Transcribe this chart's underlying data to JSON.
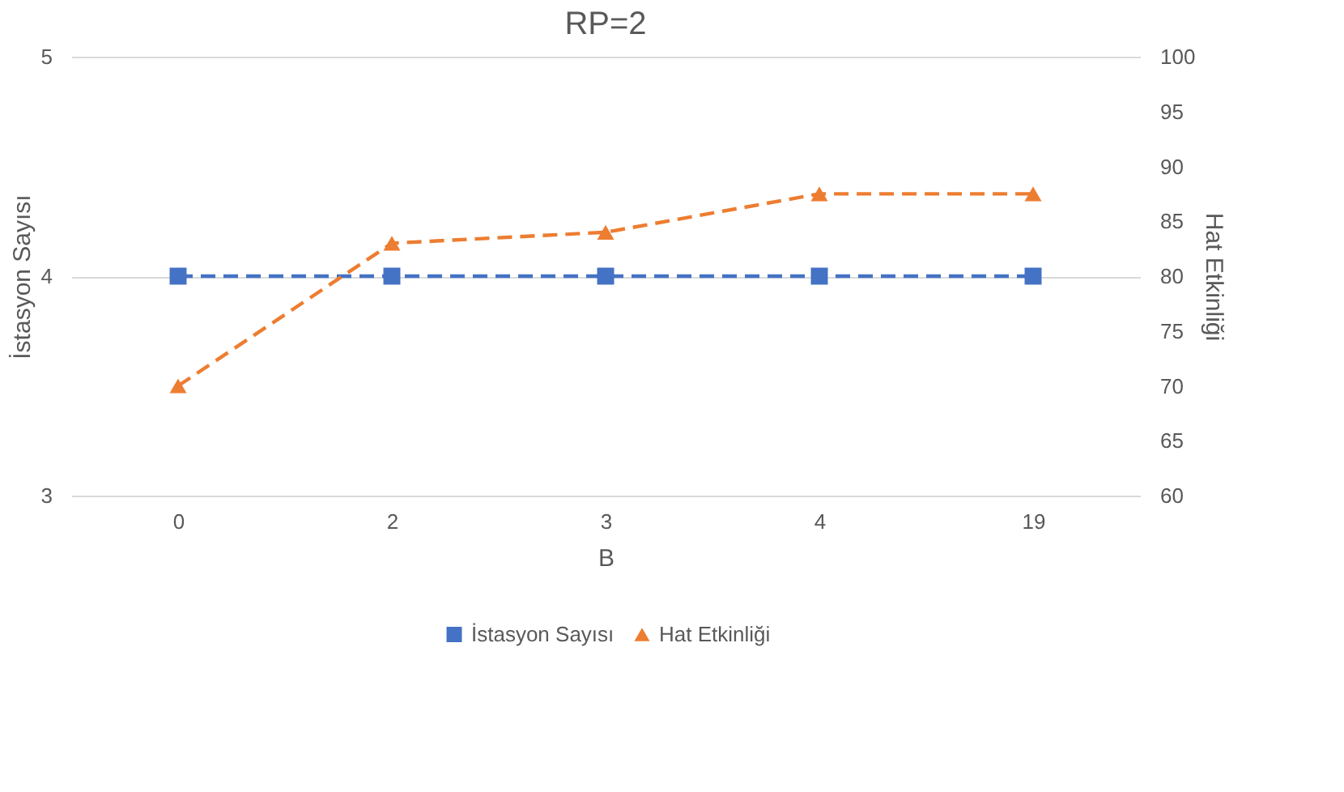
{
  "chart_data": {
    "type": "line",
    "title": "RP=2",
    "xlabel": "B",
    "ylabel": "İstasyon Sayısı",
    "y2label": "Hat Etkinliği",
    "categories": [
      "0",
      "2",
      "3",
      "4",
      "19"
    ],
    "series": [
      {
        "name": "İstasyon Sayısı",
        "color": "#4472c4",
        "marker": "square",
        "values": [
          4,
          4,
          4,
          4,
          4
        ]
      },
      {
        "name": "Hat Etkinliği",
        "color": "#ed7d31",
        "marker": "triangle",
        "axis": "y2",
        "values": [
          70,
          83,
          84,
          87.5,
          87.5
        ]
      }
    ],
    "ylim": [
      3,
      5
    ],
    "yticks": [
      3,
      4,
      5
    ],
    "y2lim": [
      60,
      100
    ],
    "y2ticks": [
      60,
      65,
      70,
      75,
      80,
      85,
      90,
      95,
      100
    ],
    "line_style": "dashed",
    "grid": "y",
    "legend": "bottom"
  }
}
